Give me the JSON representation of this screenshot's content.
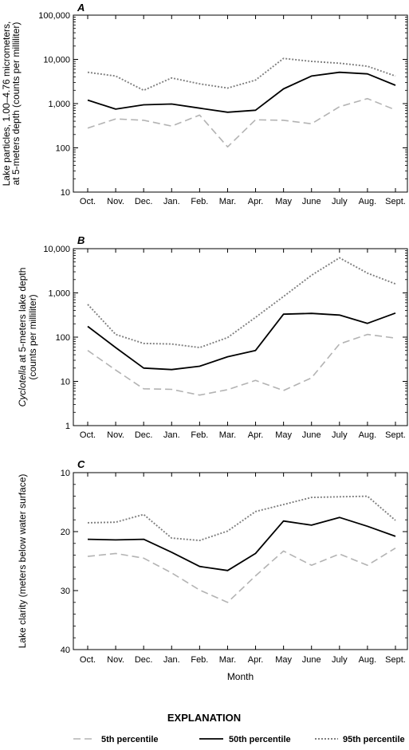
{
  "months": [
    "Oct.",
    "Nov.",
    "Dec.",
    "Jan.",
    "Feb.",
    "Mar.",
    "Apr.",
    "May",
    "June",
    "July",
    "Aug.",
    "Sept."
  ],
  "xlabel": "Month",
  "colors": {
    "p5": "#b3b3b3",
    "p50": "#000000",
    "p95": "#808080"
  },
  "chart_data": [
    {
      "type": "line",
      "panel_label": "A",
      "ylabel_lines": [
        "Lake particles, 1.00–4.76 micrometers,",
        "at 5-meters depth (counts per milliliter)"
      ],
      "ylabel_italic": "",
      "scale": "log",
      "ylim": [
        10,
        100000
      ],
      "yticks": [
        10,
        100,
        1000,
        10000,
        100000
      ],
      "ytick_labels": [
        "10",
        "100",
        "1,000",
        "10,000",
        "100,000"
      ],
      "series": [
        {
          "name": "5th percentile",
          "values": [
            280,
            450,
            420,
            310,
            550,
            105,
            430,
            420,
            350,
            850,
            1300,
            720
          ]
        },
        {
          "name": "50th percentile",
          "values": [
            1200,
            750,
            940,
            980,
            790,
            640,
            710,
            2150,
            4200,
            5100,
            4700,
            2600
          ]
        },
        {
          "name": "95th percentile",
          "values": [
            5100,
            4200,
            2000,
            3800,
            2800,
            2250,
            3400,
            10500,
            9000,
            8200,
            7000,
            4200
          ]
        }
      ]
    },
    {
      "type": "line",
      "panel_label": "B",
      "ylabel_lines": [
        "at 5-meters lake depth",
        "(counts per milliliter)"
      ],
      "ylabel_italic": "Cyclotella",
      "scale": "log",
      "ylim": [
        1,
        10000
      ],
      "yticks": [
        1,
        10,
        100,
        1000,
        10000
      ],
      "ytick_labels": [
        "1",
        "10",
        "100",
        "1,000",
        "10,000"
      ],
      "series": [
        {
          "name": "5th percentile",
          "values": [
            50,
            18,
            6.8,
            6.6,
            4.9,
            6.5,
            10.5,
            6.2,
            12,
            70,
            115,
            95
          ]
        },
        {
          "name": "50th percentile",
          "values": [
            175,
            58,
            20,
            18.5,
            22,
            36,
            50,
            330,
            345,
            315,
            205,
            350
          ]
        },
        {
          "name": "95th percentile",
          "values": [
            550,
            115,
            72,
            70,
            58,
            98,
            280,
            830,
            2500,
            6200,
            2800,
            1600
          ]
        }
      ]
    },
    {
      "type": "line",
      "panel_label": "C",
      "ylabel_lines": [
        "Lake clarity (meters below water surface)"
      ],
      "ylabel_italic": "",
      "scale": "linear-inverted",
      "ylim": [
        10,
        40
      ],
      "yticks": [
        10,
        20,
        30,
        40
      ],
      "ytick_labels": [
        "10",
        "20",
        "30",
        "40"
      ],
      "series": [
        {
          "name": "5th percentile",
          "values": [
            24.2,
            23.7,
            24.5,
            27,
            29.9,
            32,
            27.5,
            23.3,
            25.7,
            23.8,
            25.7,
            22.8
          ]
        },
        {
          "name": "50th percentile",
          "values": [
            21.3,
            21.4,
            21.3,
            23.5,
            25.9,
            26.6,
            23.7,
            18.2,
            18.9,
            17.6,
            19.1,
            20.8
          ]
        },
        {
          "name": "95th percentile",
          "values": [
            18.5,
            18.4,
            17.1,
            21.1,
            21.5,
            19.9,
            16.6,
            15.4,
            14.2,
            14.1,
            14,
            18.1
          ]
        }
      ]
    }
  ],
  "explanation": {
    "title": "EXPLANATION",
    "items": [
      {
        "key": "p5",
        "label": "5th percentile"
      },
      {
        "key": "p50",
        "label": "50th percentile"
      },
      {
        "key": "p95",
        "label": "95th percentile"
      }
    ]
  }
}
